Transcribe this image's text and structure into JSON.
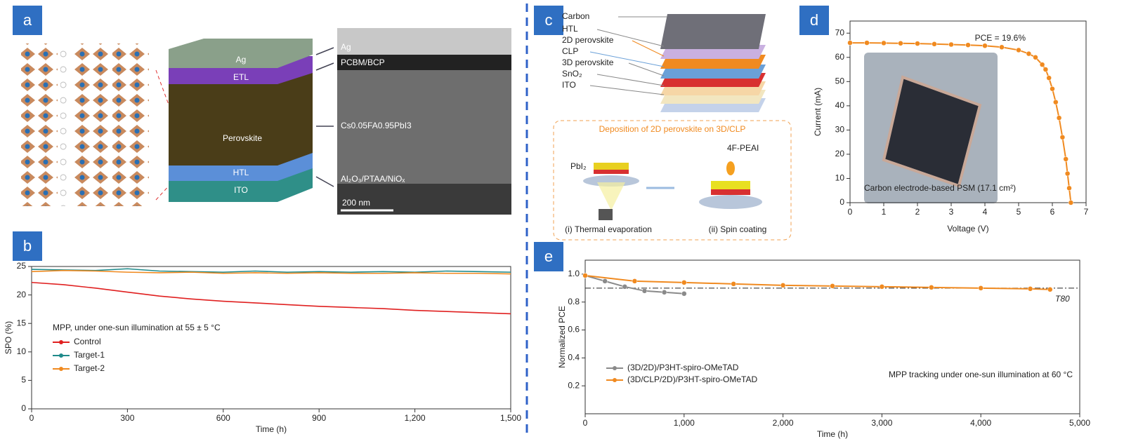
{
  "chart_data": [
    {
      "type": "line",
      "xlabel": "Time (h)",
      "ylabel": "SPO (%)",
      "annotation": "MPP, under one-sun illumination at 55 ± 5 °C",
      "x": [
        0,
        100,
        200,
        300,
        400,
        500,
        600,
        700,
        800,
        900,
        1000,
        1100,
        1200,
        1300,
        1400,
        1500
      ],
      "series": [
        {
          "name": "Control",
          "color": "#e02020",
          "values": [
            22.2,
            21.8,
            21.2,
            20.5,
            19.8,
            19.3,
            18.9,
            18.6,
            18.3,
            18.0,
            17.8,
            17.6,
            17.3,
            17.1,
            16.9,
            16.7
          ]
        },
        {
          "name": "Target-1",
          "color": "#1f8a8a",
          "values": [
            24.5,
            24.4,
            24.3,
            24.6,
            24.2,
            24.1,
            24.0,
            24.2,
            24.0,
            24.1,
            24.0,
            24.1,
            24.0,
            24.2,
            24.1,
            24.0
          ]
        },
        {
          "name": "Target-2",
          "color": "#f08a20",
          "values": [
            24.1,
            24.3,
            24.2,
            24.0,
            23.9,
            24.0,
            23.8,
            23.9,
            23.8,
            23.9,
            23.8,
            23.8,
            23.9,
            23.8,
            23.8,
            23.7
          ]
        }
      ],
      "xlim": [
        0,
        1500
      ],
      "ylim": [
        0,
        25
      ],
      "xticks": [
        0,
        300,
        600,
        900,
        {
          "value": 1200,
          "label": "1,200"
        },
        {
          "value": 1500,
          "label": "1,500"
        }
      ],
      "yticks": [
        0,
        5,
        10,
        15,
        20,
        25
      ],
      "legend": "lower left",
      "markers": false
    },
    {
      "type": "line",
      "xlabel": "Voltage (V)",
      "ylabel": "Current (mA)",
      "annotations": [
        "PCE = 19.6%",
        "Carbon electrode-based PSM (17.1 cm²)"
      ],
      "x": [
        0,
        0.5,
        1,
        1.5,
        2,
        2.5,
        3,
        3.5,
        4,
        4.5,
        5,
        5.3,
        5.5,
        5.7,
        5.8,
        5.9,
        6,
        6.1,
        6.2,
        6.3,
        6.4,
        6.45,
        6.5,
        6.55
      ],
      "series": [
        {
          "color": "#f08a20",
          "values": [
            66,
            66,
            65.9,
            65.8,
            65.7,
            65.5,
            65.3,
            65.1,
            64.8,
            64.2,
            63,
            61.5,
            60,
            57,
            55,
            51.5,
            47,
            41.5,
            35,
            27,
            18,
            12,
            6,
            0
          ]
        }
      ],
      "xlim": [
        0,
        7
      ],
      "ylim": [
        0,
        75
      ],
      "xticks": [
        0,
        1,
        2,
        3,
        4,
        5,
        6,
        7
      ],
      "yticks": [
        0,
        10,
        20,
        30,
        40,
        50,
        60,
        70
      ],
      "markers": true
    },
    {
      "type": "line",
      "xlabel": "Time (h)",
      "ylabel": "Normalized PCE",
      "annotations": [
        "T80",
        "MPP tracking under one-sun illumination at 60 °C"
      ],
      "threshold": 0.9,
      "series": [
        {
          "name": "(3D/2D)/P3HT-spiro-OMeTAD",
          "color": "#8a8a8a",
          "x": [
            0,
            200,
            400,
            600,
            800,
            1000
          ],
          "values": [
            0.99,
            0.95,
            0.91,
            0.88,
            0.87,
            0.86
          ]
        },
        {
          "name": "(3D/CLP/2D)/P3HT-spiro-OMeTAD",
          "color": "#f08a20",
          "x": [
            0,
            500,
            1000,
            1500,
            2000,
            2500,
            3000,
            3500,
            4000,
            4500,
            4700
          ],
          "values": [
            0.99,
            0.95,
            0.94,
            0.93,
            0.92,
            0.915,
            0.91,
            0.905,
            0.9,
            0.895,
            0.89
          ]
        }
      ],
      "xlim": [
        0,
        5000
      ],
      "ylim": [
        0,
        1.1
      ],
      "xticks": [
        0,
        {
          "value": 1000,
          "label": "1,000"
        },
        {
          "value": 2000,
          "label": "2,000"
        },
        {
          "value": 3000,
          "label": "3,000"
        },
        {
          "value": 4000,
          "label": "4,000"
        },
        {
          "value": 5000,
          "label": "5,000"
        }
      ],
      "yticks": [
        0.2,
        0.4,
        0.6,
        0.8,
        {
          "value": 1,
          "label": "1.0"
        }
      ],
      "legend": "lower left",
      "markers": true
    }
  ],
  "diagrams": {
    "panel_labels": [
      "a",
      "b",
      "c",
      "d",
      "e"
    ],
    "panel_a": {
      "layers": [
        "Ag",
        "ETL",
        "Perovskite",
        "HTL",
        "ITO"
      ],
      "sem_labels": [
        "Ag",
        "PCBM/BCP",
        "Cs0.05FA0.95PbI3",
        "Al₂O₃/PTAA/NiOₓ"
      ],
      "scale": "200 nm"
    },
    "panel_c": {
      "layers": [
        "Carbon",
        "HTL",
        "2D perovskite",
        "CLP",
        "3D perovskite",
        "SnO₂",
        "ITO"
      ],
      "inset_title": "Deposition of 2D perovskite on 3D/CLP",
      "precursor_1": "PbI₂",
      "precursor_2": "4F-PEAI",
      "steps": [
        "(i) Thermal evaporation",
        "(ii) Spin coating"
      ]
    }
  }
}
